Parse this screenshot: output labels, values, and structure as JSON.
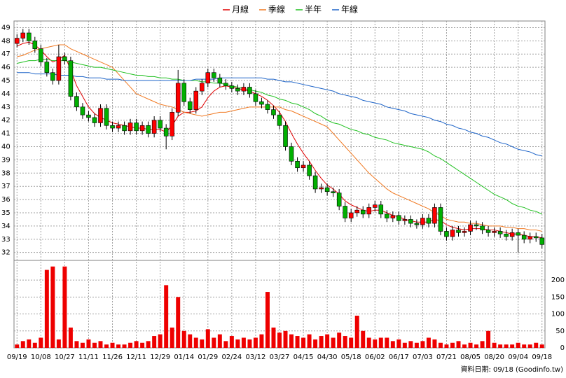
{
  "chart_data": {
    "type": "candlestick",
    "footer": "資料日期: 09/18 (Goodinfo.tw)",
    "categories": [
      "09/19",
      null,
      null,
      null,
      "10/08",
      null,
      null,
      null,
      "10/27",
      null,
      null,
      null,
      "11/11",
      null,
      null,
      null,
      "11/26",
      null,
      null,
      null,
      "12/11",
      null,
      null,
      null,
      "12/29",
      null,
      null,
      null,
      "01/14",
      null,
      null,
      null,
      "01/29",
      null,
      null,
      null,
      "02/24",
      null,
      null,
      null,
      "03/12",
      null,
      null,
      null,
      "03/27",
      null,
      null,
      null,
      "04/15",
      null,
      null,
      null,
      "04/30",
      null,
      null,
      null,
      "05/18",
      null,
      null,
      null,
      "06/02",
      null,
      null,
      null,
      "06/17",
      null,
      null,
      null,
      "07/03",
      null,
      null,
      null,
      "07/21",
      null,
      null,
      null,
      "08/05",
      null,
      null,
      null,
      "08/20",
      null,
      null,
      null,
      "09/04",
      null,
      null,
      null,
      "09/18"
    ],
    "up_color": "#ff0000",
    "down_color": "#00b000",
    "candles": {
      "open": [
        47.8,
        48.2,
        48.6,
        48.0,
        47.4,
        46.4,
        45.6,
        45.0,
        46.8,
        46.5,
        43.8,
        43.0,
        42.4,
        42.2,
        41.8,
        42.9,
        41.6,
        41.4,
        41.6,
        41.2,
        41.8,
        41.2,
        41.6,
        41.0,
        42.0,
        41.4,
        40.8,
        42.6,
        44.8,
        43.4,
        42.8,
        44.2,
        44.8,
        45.6,
        45.2,
        44.8,
        44.6,
        44.4,
        44.2,
        44.5,
        44.0,
        43.4,
        43.2,
        42.8,
        42.4,
        41.6,
        40.0,
        38.9,
        38.4,
        38.6,
        37.8,
        36.8,
        36.9,
        36.6,
        36.5,
        35.5,
        34.6,
        35.0,
        35.2,
        34.9,
        35.4,
        35.6,
        34.9,
        34.6,
        34.8,
        34.4,
        34.5,
        34.2,
        34.1,
        34.6,
        34.2,
        35.4,
        33.6,
        33.2,
        33.7,
        33.5,
        33.6,
        34.1,
        34.0,
        33.7,
        33.5,
        33.6,
        33.4,
        33.2,
        33.5,
        33.3,
        33.0,
        33.2,
        33.1
      ],
      "high": [
        48.5,
        48.9,
        48.9,
        48.3,
        47.7,
        46.7,
        45.9,
        47.7,
        47.1,
        46.8,
        44.1,
        43.3,
        42.7,
        42.5,
        43.2,
        43.2,
        41.9,
        41.9,
        41.9,
        42.1,
        42.1,
        41.9,
        41.9,
        42.3,
        42.3,
        41.7,
        42.9,
        45.8,
        45.1,
        43.7,
        44.5,
        45.1,
        45.9,
        45.9,
        45.5,
        45.1,
        44.9,
        44.7,
        44.8,
        44.8,
        44.3,
        43.7,
        43.5,
        43.1,
        42.7,
        41.9,
        40.3,
        39.2,
        38.9,
        38.9,
        38.1,
        37.2,
        37.2,
        36.9,
        36.8,
        35.8,
        35.3,
        35.5,
        35.5,
        35.7,
        35.9,
        35.9,
        35.2,
        35.1,
        35.1,
        34.8,
        34.8,
        34.5,
        34.9,
        34.9,
        35.7,
        35.7,
        33.9,
        34.0,
        34.0,
        33.9,
        34.4,
        34.4,
        34.3,
        34.0,
        33.9,
        33.9,
        33.7,
        33.8,
        33.8,
        33.6,
        33.5,
        33.5,
        33.4
      ],
      "low": [
        47.5,
        47.9,
        47.7,
        47.1,
        46.1,
        45.3,
        44.7,
        44.7,
        46.2,
        43.5,
        42.7,
        42.1,
        41.9,
        41.5,
        41.5,
        41.3,
        41.1,
        41.1,
        40.9,
        40.9,
        40.9,
        40.9,
        40.7,
        40.7,
        41.1,
        39.8,
        40.5,
        42.3,
        43.1,
        42.5,
        42.5,
        43.9,
        44.5,
        44.9,
        44.5,
        44.3,
        44.1,
        43.9,
        43.9,
        43.7,
        43.1,
        42.9,
        42.5,
        42.1,
        41.3,
        39.7,
        38.6,
        38.1,
        38.1,
        37.5,
        36.5,
        36.5,
        36.3,
        36.2,
        35.2,
        34.3,
        34.3,
        34.7,
        34.6,
        34.6,
        35.1,
        34.6,
        34.3,
        34.3,
        34.1,
        34.1,
        33.9,
        33.8,
        33.8,
        33.9,
        33.9,
        33.3,
        32.9,
        32.9,
        33.2,
        33.2,
        33.3,
        33.7,
        33.4,
        33.2,
        33.2,
        33.1,
        32.9,
        32.9,
        32.0,
        32.7,
        32.7,
        32.8,
        32.3
      ],
      "close": [
        48.2,
        48.6,
        48.0,
        47.4,
        46.4,
        45.6,
        45.0,
        46.8,
        46.5,
        43.8,
        43.0,
        42.4,
        42.2,
        41.8,
        42.9,
        41.6,
        41.4,
        41.6,
        41.2,
        41.8,
        41.2,
        41.6,
        41.0,
        42.0,
        41.4,
        40.8,
        42.6,
        44.8,
        43.4,
        42.8,
        44.2,
        44.8,
        45.6,
        45.2,
        44.8,
        44.6,
        44.4,
        44.2,
        44.5,
        44.0,
        43.4,
        43.2,
        42.8,
        42.4,
        41.6,
        40.0,
        38.9,
        38.4,
        38.6,
        37.8,
        36.8,
        36.9,
        36.6,
        36.5,
        35.5,
        34.6,
        35.0,
        35.2,
        34.9,
        35.4,
        35.6,
        34.9,
        34.6,
        34.8,
        34.4,
        34.5,
        34.2,
        34.1,
        34.6,
        34.2,
        35.4,
        33.6,
        33.2,
        33.7,
        33.5,
        33.6,
        34.1,
        34.0,
        33.7,
        33.5,
        33.6,
        33.4,
        33.2,
        33.5,
        33.3,
        33.0,
        33.2,
        33.1,
        32.6
      ]
    },
    "series": [
      {
        "name": "月線",
        "color": "#e00000",
        "values": [
          47.6,
          47.8,
          47.9,
          47.7,
          47.3,
          46.8,
          46.4,
          46.6,
          46.9,
          45.8,
          44.6,
          43.8,
          43.0,
          42.5,
          42.2,
          42.0,
          41.8,
          41.7,
          41.6,
          41.5,
          41.4,
          41.4,
          41.3,
          41.3,
          41.3,
          41.1,
          41.6,
          42.3,
          42.6,
          42.6,
          42.7,
          43.0,
          43.7,
          44.2,
          44.5,
          44.6,
          44.5,
          44.4,
          44.3,
          44.2,
          44.0,
          43.8,
          43.5,
          43.1,
          42.6,
          41.9,
          41.0,
          40.2,
          39.5,
          38.9,
          38.2,
          37.6,
          37.1,
          36.8,
          36.4,
          35.9,
          35.6,
          35.4,
          35.2,
          35.1,
          35.2,
          35.2,
          35.0,
          34.8,
          34.7,
          34.5,
          34.4,
          34.3,
          34.3,
          34.3,
          34.5,
          34.4,
          34.1,
          33.9,
          33.8,
          33.7,
          33.8,
          33.8,
          33.8,
          33.7,
          33.7,
          33.6,
          33.5,
          33.4,
          33.4,
          33.3,
          33.2,
          33.2,
          33.1
        ]
      },
      {
        "name": "季線",
        "color": "#f07820",
        "values": [
          46.8,
          46.9,
          47.1,
          47.3,
          47.4,
          47.5,
          47.6,
          47.7,
          47.7,
          47.4,
          47.2,
          47.0,
          46.8,
          46.6,
          46.4,
          46.2,
          46.0,
          45.5,
          45.0,
          44.5,
          44.0,
          43.8,
          43.6,
          43.4,
          43.2,
          43.1,
          43.0,
          42.8,
          42.6,
          42.5,
          42.4,
          42.3,
          42.4,
          42.5,
          42.6,
          42.6,
          42.7,
          42.8,
          42.9,
          43.0,
          43.0,
          43.0,
          43.0,
          43.0,
          43.0,
          42.8,
          42.7,
          42.5,
          42.3,
          42.1,
          41.9,
          41.7,
          41.5,
          41.0,
          40.5,
          40.0,
          39.5,
          39.0,
          38.5,
          38.0,
          37.6,
          37.2,
          36.8,
          36.5,
          36.3,
          36.1,
          35.9,
          35.7,
          35.5,
          35.3,
          35.0,
          34.8,
          34.5,
          34.4,
          34.3,
          34.3,
          34.2,
          34.2,
          34.1,
          34.0,
          34.0,
          34.0,
          33.9,
          33.9,
          33.8,
          33.8,
          33.7,
          33.7,
          33.6
        ]
      },
      {
        "name": "半年",
        "color": "#20c020",
        "values": [
          46.3,
          46.4,
          46.5,
          46.5,
          46.6,
          46.6,
          46.5,
          46.5,
          46.5,
          46.4,
          46.3,
          46.2,
          46.1,
          46.0,
          46.0,
          45.9,
          45.8,
          45.7,
          45.6,
          45.5,
          45.4,
          45.4,
          45.3,
          45.3,
          45.2,
          45.2,
          45.1,
          45.1,
          45.0,
          45.0,
          45.0,
          44.9,
          44.9,
          44.8,
          44.8,
          44.7,
          44.6,
          44.5,
          44.4,
          44.3,
          44.2,
          44.1,
          43.9,
          43.8,
          43.6,
          43.5,
          43.3,
          43.2,
          43.0,
          42.8,
          42.5,
          42.3,
          42.0,
          41.8,
          41.7,
          41.5,
          41.3,
          41.2,
          41.0,
          40.9,
          40.7,
          40.6,
          40.5,
          40.3,
          40.2,
          40.1,
          40.0,
          39.9,
          39.8,
          39.6,
          39.3,
          39.1,
          38.8,
          38.5,
          38.2,
          37.9,
          37.6,
          37.3,
          37.0,
          36.7,
          36.4,
          36.2,
          36.0,
          35.7,
          35.5,
          35.4,
          35.2,
          35.1,
          34.9
        ]
      },
      {
        "name": "年線",
        "color": "#1e64c8",
        "values": [
          45.6,
          45.6,
          45.6,
          45.5,
          45.5,
          45.5,
          45.5,
          45.4,
          45.4,
          45.4,
          45.3,
          45.3,
          45.2,
          45.2,
          45.2,
          45.1,
          45.1,
          45.1,
          45.0,
          45.0,
          45.0,
          45.0,
          45.0,
          45.0,
          45.0,
          45.0,
          45.0,
          45.0,
          45.0,
          45.0,
          45.1,
          45.1,
          45.1,
          45.1,
          45.2,
          45.2,
          45.2,
          45.2,
          45.2,
          45.2,
          45.2,
          45.2,
          45.1,
          45.1,
          45.0,
          44.9,
          44.9,
          44.8,
          44.7,
          44.6,
          44.5,
          44.4,
          44.3,
          44.2,
          44.0,
          43.9,
          43.8,
          43.7,
          43.5,
          43.4,
          43.3,
          43.2,
          43.0,
          42.9,
          42.8,
          42.7,
          42.5,
          42.4,
          42.3,
          42.2,
          42.0,
          41.9,
          41.7,
          41.6,
          41.4,
          41.3,
          41.1,
          41.0,
          40.8,
          40.7,
          40.5,
          40.3,
          40.2,
          40.0,
          39.8,
          39.7,
          39.6,
          39.4,
          39.3
        ]
      }
    ],
    "volume": {
      "color": "#ee0000",
      "values": [
        10,
        20,
        25,
        15,
        30,
        230,
        240,
        25,
        240,
        60,
        20,
        15,
        25,
        15,
        20,
        10,
        15,
        10,
        10,
        15,
        20,
        15,
        20,
        35,
        40,
        185,
        60,
        150,
        50,
        40,
        30,
        25,
        55,
        30,
        40,
        20,
        35,
        25,
        30,
        25,
        30,
        40,
        165,
        60,
        45,
        50,
        40,
        35,
        30,
        40,
        25,
        35,
        40,
        30,
        45,
        35,
        30,
        95,
        50,
        30,
        25,
        30,
        30,
        20,
        25,
        15,
        20,
        15,
        20,
        30,
        25,
        15,
        10,
        15,
        20,
        10,
        15,
        10,
        20,
        50,
        15,
        10,
        10,
        10,
        15,
        10,
        10,
        15,
        10
      ]
    },
    "ylim": [
      31.4,
      49.5
    ],
    "yticks": [
      32,
      33,
      34,
      35,
      36,
      37,
      38,
      39,
      40,
      41,
      42,
      43,
      44,
      45,
      46,
      47,
      48,
      49
    ],
    "y2lim": [
      0,
      258
    ],
    "y2ticks": [
      0,
      50,
      100,
      150,
      200
    ],
    "grid": true
  }
}
